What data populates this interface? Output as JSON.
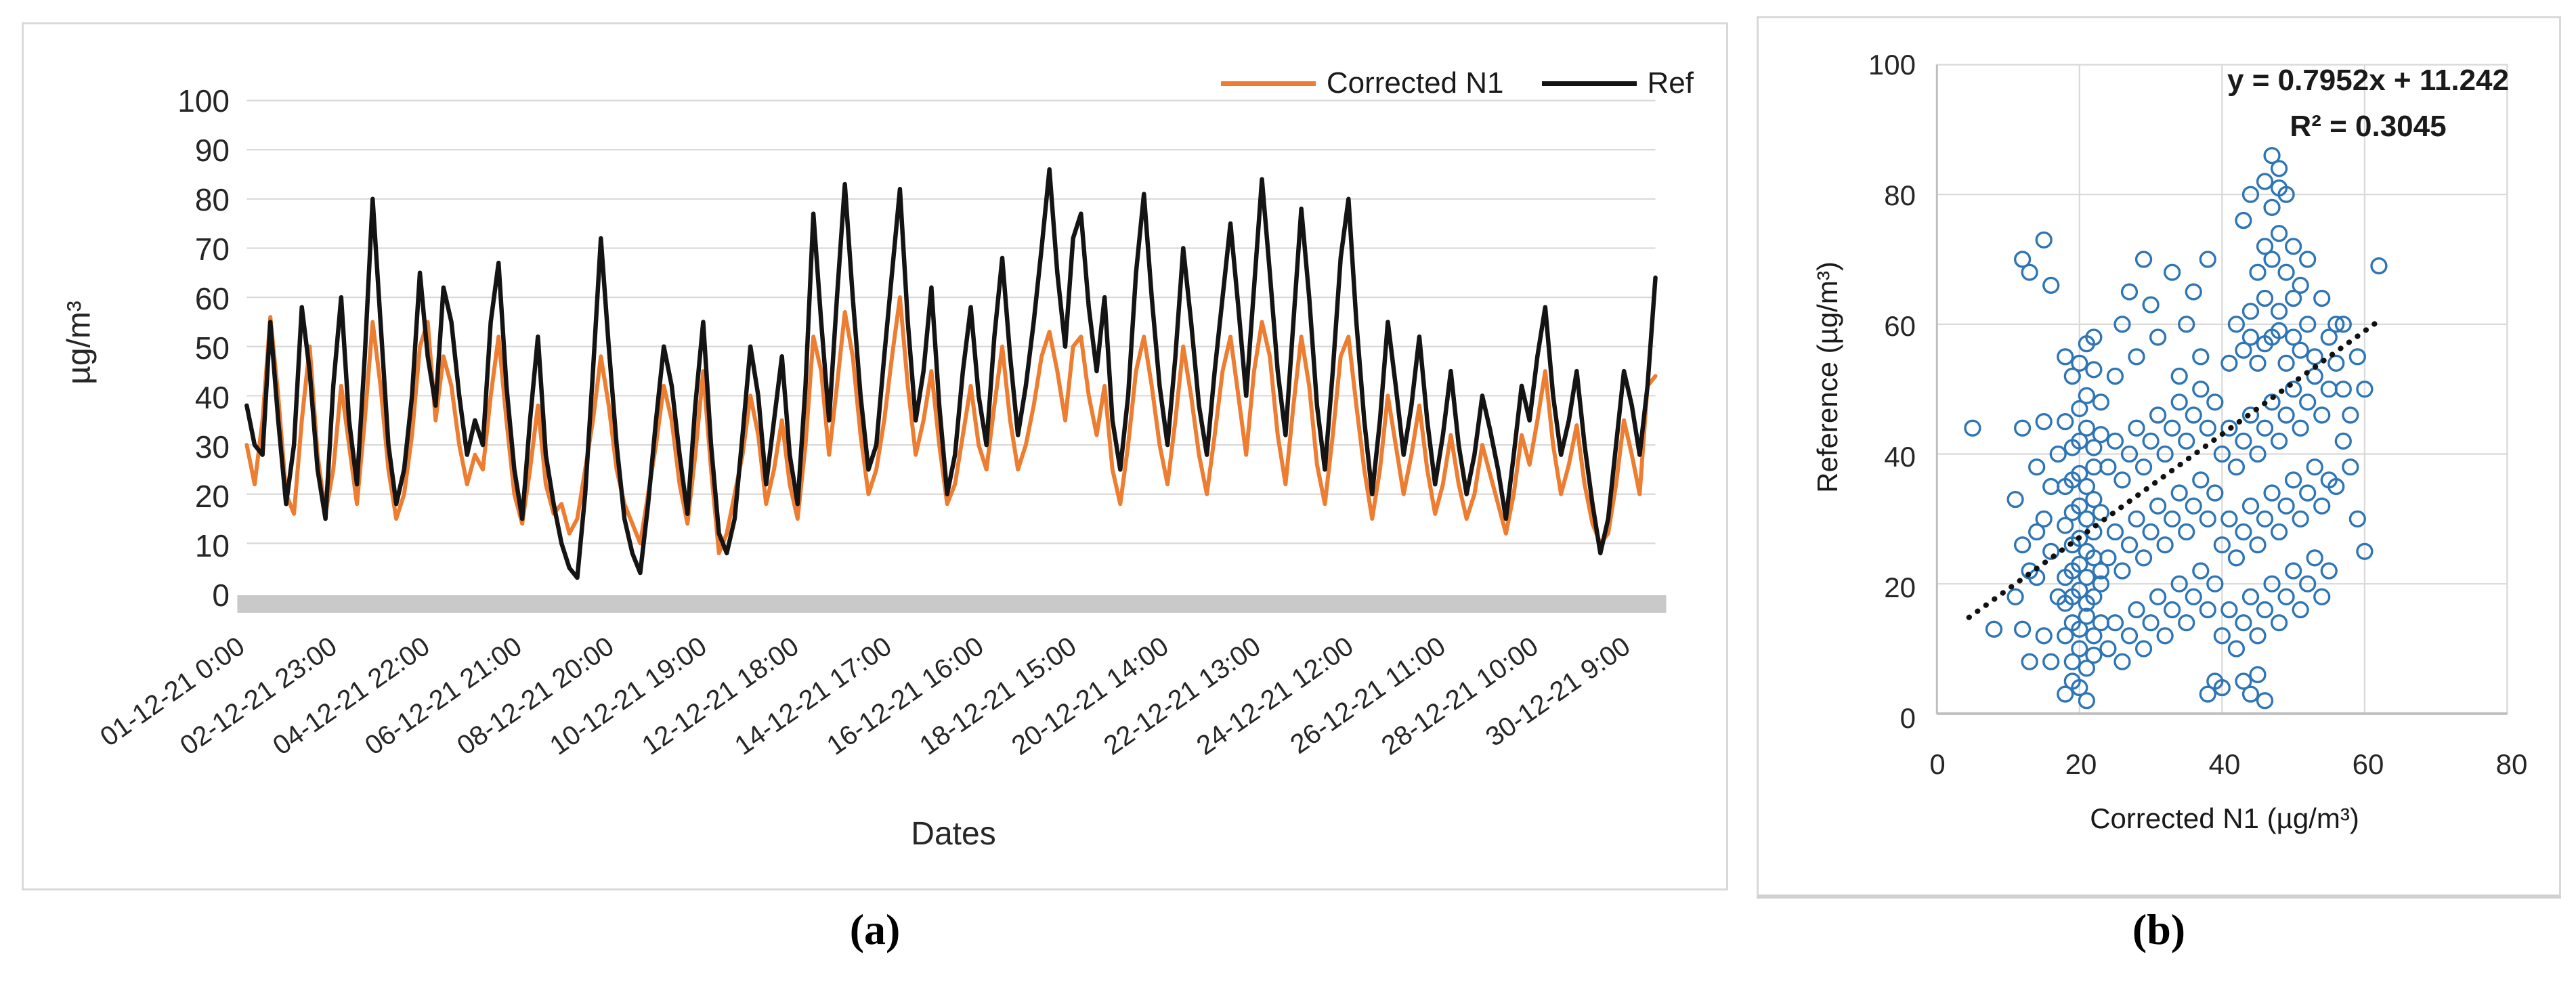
{
  "figure": {
    "caption_a": "(a)",
    "caption_b": "(b)"
  },
  "colors": {
    "corrected": "#ED7D31",
    "ref": "#141414",
    "scatter": "#2E75B6",
    "grid": "#D9D9D9",
    "axis_bar": "#C9C9C9",
    "axis_line": "#BFBFBF",
    "trendline": "#111111"
  },
  "chart_data": [
    {
      "type": "line",
      "title": "",
      "xlabel": "Dates",
      "ylabel": "µg/m³",
      "ylim": [
        0,
        100
      ],
      "y_ticks": [
        0,
        10,
        20,
        30,
        40,
        50,
        60,
        70,
        80,
        90,
        100
      ],
      "x_tick_labels": [
        "01-12-21 0:00",
        "02-12-21 23:00",
        "04-12-21 22:00",
        "06-12-21 21:00",
        "08-12-21 20:00",
        "10-12-21 19:00",
        "12-12-21 18:00",
        "14-12-21 17:00",
        "16-12-21 16:00",
        "18-12-21 15:00",
        "20-12-21 14:00",
        "22-12-21 13:00",
        "24-12-21 12:00",
        "26-12-21 11:00",
        "28-12-21 10:00",
        "30-12-21 9:00"
      ],
      "x_tick_hours": [
        0,
        47,
        94,
        141,
        188,
        235,
        282,
        329,
        376,
        423,
        470,
        517,
        564,
        611,
        658,
        705
      ],
      "total_hours": 720,
      "grid": true,
      "legend_position": "top-right",
      "series": [
        {
          "name": "Corrected N1",
          "values": [
            30,
            22,
            35,
            56,
            40,
            20,
            16,
            35,
            50,
            28,
            16,
            25,
            42,
            30,
            18,
            35,
            55,
            42,
            25,
            15,
            20,
            32,
            50,
            55,
            35,
            48,
            42,
            30,
            22,
            28,
            25,
            40,
            52,
            35,
            20,
            14,
            25,
            38,
            22,
            16,
            18,
            12,
            15,
            25,
            35,
            48,
            38,
            25,
            18,
            14,
            10,
            20,
            30,
            42,
            35,
            22,
            14,
            28,
            45,
            25,
            8,
            12,
            20,
            28,
            40,
            32,
            18,
            25,
            35,
            22,
            15,
            30,
            52,
            45,
            28,
            42,
            57,
            48,
            32,
            20,
            25,
            35,
            48,
            60,
            42,
            28,
            35,
            45,
            30,
            18,
            22,
            32,
            42,
            30,
            25,
            38,
            50,
            35,
            25,
            30,
            38,
            48,
            53,
            45,
            35,
            50,
            52,
            40,
            32,
            42,
            25,
            18,
            30,
            45,
            52,
            42,
            30,
            22,
            35,
            50,
            40,
            28,
            20,
            32,
            45,
            52,
            40,
            28,
            45,
            55,
            48,
            32,
            22,
            38,
            52,
            42,
            26,
            18,
            32,
            48,
            52,
            38,
            25,
            15,
            25,
            40,
            30,
            20,
            28,
            38,
            25,
            16,
            22,
            32,
            22,
            15,
            20,
            30,
            24,
            18,
            12,
            20,
            32,
            26,
            35,
            45,
            30,
            20,
            26,
            34,
            22,
            14,
            10,
            12,
            22,
            35,
            28,
            20,
            42,
            44
          ]
        },
        {
          "name": "Ref",
          "values": [
            38,
            30,
            28,
            55,
            35,
            18,
            30,
            58,
            45,
            25,
            15,
            42,
            60,
            35,
            22,
            48,
            80,
            55,
            30,
            18,
            25,
            40,
            65,
            48,
            38,
            62,
            55,
            40,
            28,
            35,
            30,
            55,
            67,
            42,
            25,
            15,
            35,
            52,
            28,
            18,
            10,
            5,
            3,
            20,
            45,
            72,
            50,
            30,
            15,
            8,
            4,
            18,
            35,
            50,
            42,
            28,
            16,
            38,
            55,
            30,
            12,
            8,
            15,
            32,
            50,
            40,
            22,
            35,
            48,
            28,
            18,
            42,
            77,
            55,
            35,
            60,
            83,
            60,
            40,
            25,
            30,
            48,
            65,
            82,
            55,
            35,
            45,
            62,
            38,
            20,
            28,
            45,
            58,
            40,
            30,
            52,
            68,
            48,
            32,
            42,
            55,
            70,
            86,
            65,
            50,
            72,
            77,
            58,
            45,
            60,
            35,
            25,
            40,
            65,
            81,
            60,
            42,
            30,
            48,
            70,
            55,
            38,
            28,
            45,
            60,
            75,
            58,
            40,
            62,
            84,
            65,
            45,
            32,
            55,
            78,
            60,
            38,
            25,
            45,
            68,
            80,
            55,
            35,
            20,
            35,
            55,
            42,
            28,
            38,
            52,
            35,
            22,
            32,
            45,
            30,
            20,
            28,
            40,
            33,
            25,
            15,
            28,
            42,
            35,
            48,
            58,
            40,
            28,
            35,
            45,
            30,
            18,
            8,
            15,
            30,
            45,
            38,
            28,
            42,
            64
          ]
        }
      ]
    },
    {
      "type": "scatter",
      "equation": "y = 0.7952x + 11.242",
      "r_squared": "R² = 0.3045",
      "xlabel": "Corrected N1 (µg/m³)",
      "ylabel": "Reference (µg/m³)",
      "xlim": [
        0,
        80
      ],
      "ylim": [
        0,
        100
      ],
      "x_ticks": [
        0,
        20,
        40,
        60,
        80
      ],
      "y_ticks": [
        0,
        20,
        40,
        60,
        80,
        100
      ],
      "grid": true,
      "trendline": {
        "slope": 0.7952,
        "intercept": 11.242,
        "x_start": 4.5,
        "x_end": 62,
        "style": "dotted"
      },
      "points": [
        [
          5,
          44
        ],
        [
          8,
          13
        ],
        [
          12,
          44
        ],
        [
          11,
          33
        ],
        [
          12,
          26
        ],
        [
          13,
          22
        ],
        [
          11,
          18
        ],
        [
          12,
          13
        ],
        [
          13,
          8
        ],
        [
          14,
          28
        ],
        [
          14,
          38
        ],
        [
          15,
          45
        ],
        [
          12,
          70
        ],
        [
          13,
          68
        ],
        [
          15,
          73
        ],
        [
          16,
          66
        ],
        [
          14,
          21
        ],
        [
          15,
          12
        ],
        [
          16,
          8
        ],
        [
          15,
          30
        ],
        [
          16,
          35
        ],
        [
          16,
          25
        ],
        [
          17,
          18
        ],
        [
          17,
          40
        ],
        [
          18,
          3
        ],
        [
          19,
          5
        ],
        [
          20,
          4
        ],
        [
          21,
          2
        ],
        [
          19,
          8
        ],
        [
          20,
          10
        ],
        [
          21,
          7
        ],
        [
          22,
          9
        ],
        [
          18,
          12
        ],
        [
          19,
          14
        ],
        [
          20,
          13
        ],
        [
          21,
          15
        ],
        [
          22,
          12
        ],
        [
          23,
          14
        ],
        [
          18,
          17
        ],
        [
          19,
          18
        ],
        [
          20,
          19
        ],
        [
          21,
          17
        ],
        [
          22,
          18
        ],
        [
          23,
          20
        ],
        [
          18,
          21
        ],
        [
          19,
          22
        ],
        [
          20,
          23
        ],
        [
          21,
          21
        ],
        [
          22,
          24
        ],
        [
          23,
          22
        ],
        [
          19,
          26
        ],
        [
          20,
          27
        ],
        [
          21,
          25
        ],
        [
          22,
          28
        ],
        [
          18,
          29
        ],
        [
          19,
          31
        ],
        [
          20,
          32
        ],
        [
          21,
          30
        ],
        [
          22,
          33
        ],
        [
          23,
          31
        ],
        [
          18,
          35
        ],
        [
          19,
          36
        ],
        [
          20,
          37
        ],
        [
          21,
          35
        ],
        [
          22,
          38
        ],
        [
          19,
          41
        ],
        [
          20,
          42
        ],
        [
          21,
          44
        ],
        [
          22,
          41
        ],
        [
          20,
          47
        ],
        [
          21,
          49
        ],
        [
          19,
          52
        ],
        [
          20,
          54
        ],
        [
          21,
          57
        ],
        [
          22,
          53
        ],
        [
          18,
          45
        ],
        [
          23,
          43
        ],
        [
          23,
          48
        ],
        [
          18,
          55
        ],
        [
          22,
          58
        ],
        [
          24,
          10
        ],
        [
          25,
          14
        ],
        [
          26,
          8
        ],
        [
          27,
          12
        ],
        [
          28,
          16
        ],
        [
          29,
          10
        ],
        [
          30,
          14
        ],
        [
          31,
          18
        ],
        [
          32,
          12
        ],
        [
          33,
          16
        ],
        [
          34,
          20
        ],
        [
          35,
          14
        ],
        [
          36,
          18
        ],
        [
          37,
          22
        ],
        [
          38,
          16
        ],
        [
          39,
          20
        ],
        [
          24,
          24
        ],
        [
          25,
          28
        ],
        [
          26,
          22
        ],
        [
          27,
          26
        ],
        [
          28,
          30
        ],
        [
          29,
          24
        ],
        [
          30,
          28
        ],
        [
          31,
          32
        ],
        [
          32,
          26
        ],
        [
          33,
          30
        ],
        [
          34,
          34
        ],
        [
          35,
          28
        ],
        [
          36,
          32
        ],
        [
          37,
          36
        ],
        [
          38,
          30
        ],
        [
          39,
          34
        ],
        [
          24,
          38
        ],
        [
          25,
          42
        ],
        [
          26,
          36
        ],
        [
          27,
          40
        ],
        [
          28,
          44
        ],
        [
          29,
          38
        ],
        [
          30,
          42
        ],
        [
          31,
          46
        ],
        [
          32,
          40
        ],
        [
          33,
          44
        ],
        [
          34,
          48
        ],
        [
          35,
          42
        ],
        [
          36,
          46
        ],
        [
          37,
          50
        ],
        [
          38,
          44
        ],
        [
          39,
          48
        ],
        [
          25,
          52
        ],
        [
          28,
          55
        ],
        [
          31,
          58
        ],
        [
          34,
          52
        ],
        [
          37,
          55
        ],
        [
          26,
          60
        ],
        [
          30,
          63
        ],
        [
          35,
          60
        ],
        [
          27,
          65
        ],
        [
          33,
          68
        ],
        [
          29,
          70
        ],
        [
          36,
          65
        ],
        [
          38,
          70
        ],
        [
          39,
          5
        ],
        [
          38,
          3
        ],
        [
          40,
          4
        ],
        [
          40,
          12
        ],
        [
          41,
          16
        ],
        [
          42,
          10
        ],
        [
          43,
          14
        ],
        [
          44,
          18
        ],
        [
          45,
          12
        ],
        [
          46,
          16
        ],
        [
          47,
          20
        ],
        [
          48,
          14
        ],
        [
          49,
          18
        ],
        [
          50,
          22
        ],
        [
          51,
          16
        ],
        [
          52,
          20
        ],
        [
          53,
          24
        ],
        [
          54,
          18
        ],
        [
          55,
          22
        ],
        [
          40,
          26
        ],
        [
          41,
          30
        ],
        [
          42,
          24
        ],
        [
          43,
          28
        ],
        [
          44,
          32
        ],
        [
          45,
          26
        ],
        [
          46,
          30
        ],
        [
          47,
          34
        ],
        [
          48,
          28
        ],
        [
          49,
          32
        ],
        [
          50,
          36
        ],
        [
          51,
          30
        ],
        [
          52,
          34
        ],
        [
          53,
          38
        ],
        [
          54,
          32
        ],
        [
          55,
          36
        ],
        [
          40,
          40
        ],
        [
          41,
          44
        ],
        [
          42,
          38
        ],
        [
          43,
          42
        ],
        [
          44,
          46
        ],
        [
          45,
          40
        ],
        [
          46,
          44
        ],
        [
          47,
          48
        ],
        [
          48,
          42
        ],
        [
          49,
          46
        ],
        [
          50,
          50
        ],
        [
          51,
          44
        ],
        [
          52,
          48
        ],
        [
          53,
          52
        ],
        [
          54,
          46
        ],
        [
          55,
          50
        ],
        [
          41,
          54
        ],
        [
          43,
          56
        ],
        [
          45,
          54
        ],
        [
          47,
          58
        ],
        [
          49,
          54
        ],
        [
          51,
          56
        ],
        [
          53,
          55
        ],
        [
          44,
          58
        ],
        [
          46,
          57
        ],
        [
          48,
          59
        ],
        [
          50,
          58
        ],
        [
          42,
          60
        ],
        [
          44,
          62
        ],
        [
          46,
          64
        ],
        [
          48,
          62
        ],
        [
          50,
          64
        ],
        [
          52,
          60
        ],
        [
          45,
          68
        ],
        [
          47,
          70
        ],
        [
          49,
          68
        ],
        [
          51,
          66
        ],
        [
          46,
          72
        ],
        [
          48,
          74
        ],
        [
          50,
          72
        ],
        [
          47,
          78
        ],
        [
          48,
          81
        ],
        [
          49,
          80
        ],
        [
          47,
          86
        ],
        [
          48,
          84
        ],
        [
          46,
          82
        ],
        [
          44,
          80
        ],
        [
          43,
          76
        ],
        [
          52,
          70
        ],
        [
          54,
          64
        ],
        [
          55,
          58
        ],
        [
          56,
          54
        ],
        [
          57,
          50
        ],
        [
          58,
          46
        ],
        [
          56,
          60
        ],
        [
          57,
          42
        ],
        [
          58,
          38
        ],
        [
          59,
          30
        ],
        [
          60,
          25
        ],
        [
          62,
          69
        ],
        [
          56,
          35
        ],
        [
          57,
          60
        ],
        [
          59,
          55
        ],
        [
          60,
          50
        ],
        [
          44,
          3
        ],
        [
          46,
          2
        ],
        [
          45,
          6
        ],
        [
          43,
          5
        ]
      ]
    }
  ]
}
